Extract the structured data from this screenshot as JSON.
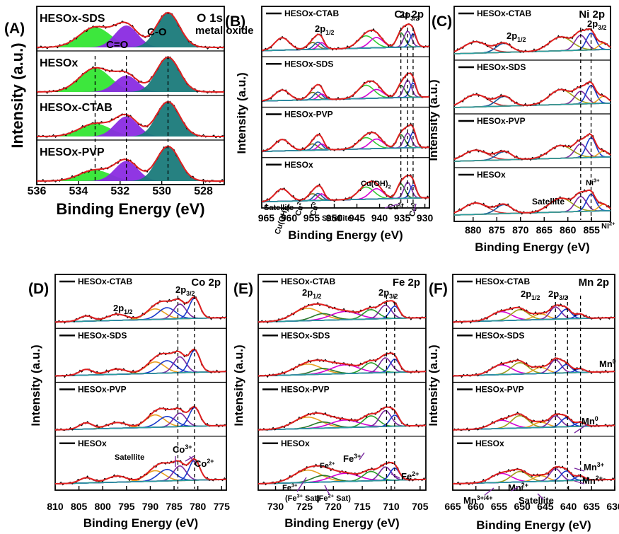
{
  "figure": {
    "panels": [
      "A",
      "B",
      "C",
      "D",
      "E",
      "F"
    ]
  },
  "chart_data": [
    {
      "type": "line",
      "panel": "(A)",
      "element": "O 1s",
      "xlabel": "Binding Energy (eV)",
      "ylabel": "Intensity (a.u.)",
      "xlim": [
        536,
        527
      ],
      "xticks": [
        536,
        534,
        532,
        530,
        528
      ],
      "samples": [
        "HESOx-SDS",
        "HESOx",
        "HESOx-CTAB",
        "HESOx-PVP"
      ],
      "annotations": [
        "C=O",
        "C-O",
        "metal oxide"
      ],
      "dashed_lines": [
        533.2,
        531.7,
        529.7
      ],
      "series": [
        {
          "name": "C=O",
          "color": "#33e633",
          "peak": 533.2
        },
        {
          "name": "C-O",
          "color": "#8a2be2",
          "peak": 531.7
        },
        {
          "name": "metal oxide",
          "color": "#1a7a7a",
          "peak": 529.7
        }
      ]
    },
    {
      "type": "line",
      "panel": "(B)",
      "element": "Cu 2p",
      "xlabel": "Binding Energy (eV)",
      "ylabel": "Intensity (a.u.)",
      "xlim": [
        966,
        929
      ],
      "xticks": [
        965,
        960,
        955,
        950,
        945,
        940,
        935,
        930
      ],
      "samples": [
        "HESOx-CTAB",
        "HESOx-SDS",
        "HESOx-PVP",
        "HESOx"
      ],
      "annotations": [
        "2p1/2",
        "2p3/2",
        "Satellite",
        "Cu(OH)2",
        "Cu2+",
        "Cu0",
        "Satellite",
        "Cu(OH)2",
        "Cu2+",
        "Cu0"
      ],
      "dashed_lines": [
        935.3,
        933.8,
        932.6
      ]
    },
    {
      "type": "line",
      "panel": "(C)",
      "element": "Ni 2p",
      "xlabel": "Binding Energy (eV)",
      "ylabel": "Intensity (a.u.)",
      "xlim": [
        884,
        851
      ],
      "xticks": [
        880,
        875,
        870,
        865,
        860,
        855
      ],
      "samples": [
        "HESOx-CTAB",
        "HESOx-SDS",
        "HESOx-PVP",
        "HESOx"
      ],
      "annotations": [
        "2p1/2",
        "2p3/2",
        "Ni3+",
        "Satellite",
        "Ni2+"
      ],
      "dashed_lines": [
        857.3,
        855.1
      ]
    },
    {
      "type": "line",
      "panel": "(D)",
      "element": "Co 2p",
      "xlabel": "Binding Energy (eV)",
      "ylabel": "Intensity (a.u.)",
      "xlim": [
        810,
        774
      ],
      "xticks": [
        810,
        805,
        800,
        795,
        790,
        785,
        780,
        775
      ],
      "samples": [
        "HESOx-CTAB",
        "HESOx-SDS",
        "HESOx-PVP",
        "HESOx"
      ],
      "annotations": [
        "2p1/2",
        "2p3/2",
        "Satellite",
        "Co3+",
        "Co2+"
      ],
      "dashed_lines": [
        784.2,
        780.7
      ]
    },
    {
      "type": "line",
      "panel": "(E)",
      "element": "Fe 2p",
      "xlabel": "Binding Energy (eV)",
      "ylabel": "Intensity (a.u.)",
      "xlim": [
        733,
        704
      ],
      "xticks": [
        730,
        725,
        720,
        715,
        710,
        705
      ],
      "samples": [
        "HESOx-CTAB",
        "HESOx-SDS",
        "HESOx-PVP",
        "HESOx"
      ],
      "annotations": [
        "2p1/2",
        "2p3/2",
        "Fe2+",
        "Fe3+",
        "Fe3+",
        "(Fe3+ Sat)",
        "(Fe2+ Sat)",
        "Fe2+"
      ],
      "dashed_lines": [
        710.8,
        709.4
      ]
    },
    {
      "type": "line",
      "panel": "(F)",
      "element": "Mn 2p",
      "xlabel": "Binding Energy (eV)",
      "ylabel": "Intensity (a.u.)",
      "xlim": [
        665,
        630
      ],
      "xticks": [
        665,
        660,
        655,
        650,
        645,
        640,
        635,
        630
      ],
      "samples": [
        "HESOx-CTAB",
        "HESOx-SDS",
        "HESOx-PVP",
        "HESOx"
      ],
      "annotations": [
        "2p1/2",
        "2p3/2",
        "Mn0",
        "Mn0",
        "Mn3+",
        "Mn2+",
        "Mn3+/4+",
        "Mn2+",
        "Satellite"
      ],
      "dashed_lines": [
        642.8,
        640.2,
        637.4
      ]
    }
  ]
}
